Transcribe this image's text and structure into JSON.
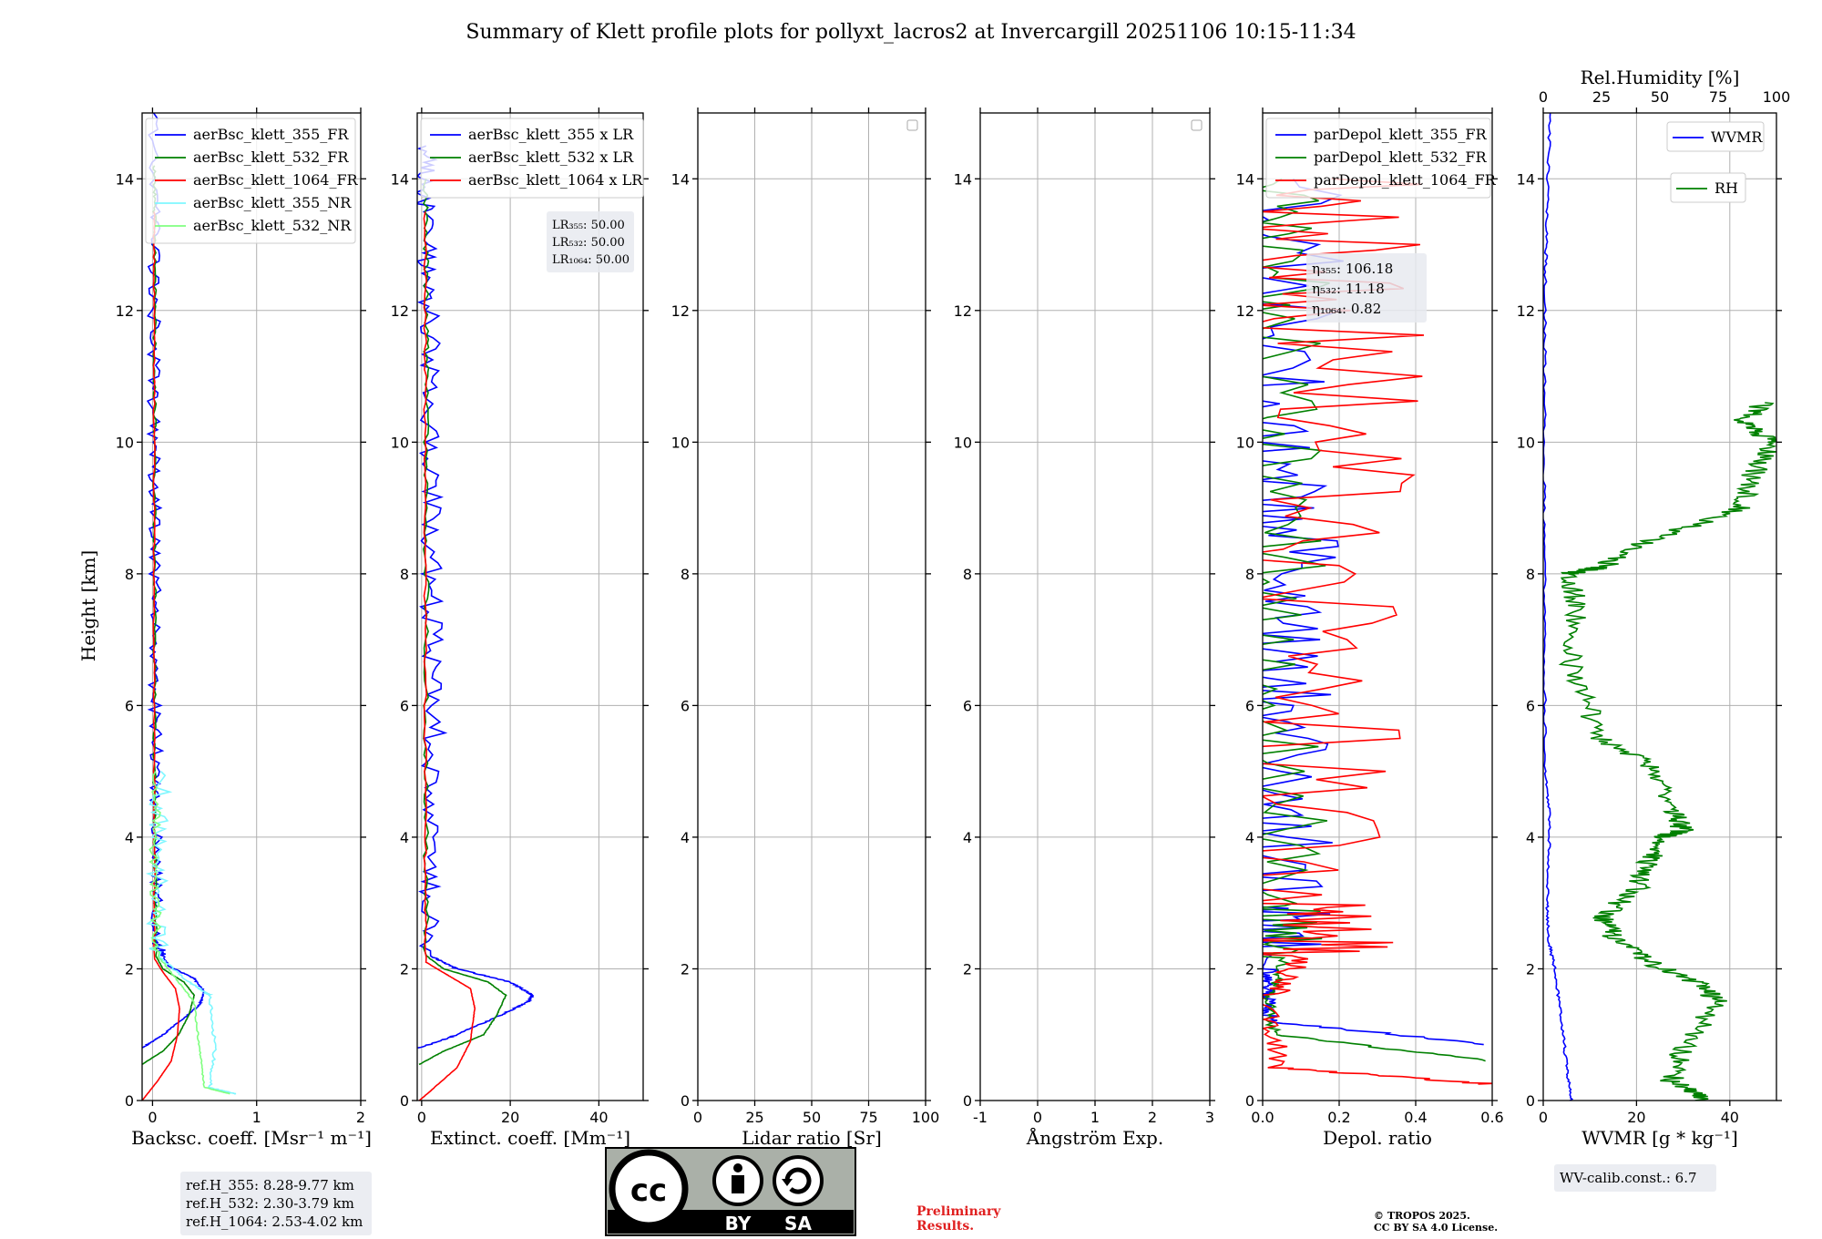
{
  "title": "Summary of Klett profile plots for pollyxt_lacros2 at Invercargill 20251106 10:15-11:34",
  "ylabel": "Height [km]",
  "colors": {
    "b355": "#0000ff",
    "g532": "#008000",
    "r1064": "#ff0000",
    "cyan": "#7ff7ff",
    "lime": "#80ff80",
    "grid": "#b0b0b0"
  },
  "chart_data": [
    {
      "type": "line",
      "id": "bsc",
      "xlabel": "Backsc. coeff. [Msr⁻¹ m⁻¹]",
      "xlim": [
        -0.1,
        2
      ],
      "ylim": [
        0,
        15
      ],
      "xticks": [
        0,
        1,
        2
      ],
      "yticks": [
        0,
        2,
        4,
        6,
        8,
        10,
        12,
        14
      ],
      "legend": [
        "aerBsc_klett_355_FR",
        "aerBsc_klett_532_FR",
        "aerBsc_klett_1064_FR",
        "aerBsc_klett_355_NR",
        "aerBsc_klett_532_NR"
      ],
      "series": [
        {
          "name": "aerBsc_klett_355_FR",
          "color": "#0000ff",
          "noise": 0.06,
          "x": [
            -0.1,
            0.1,
            0.3,
            0.45,
            0.5,
            0.4,
            0.15,
            0.05,
            0.03,
            0.04,
            0.02,
            0.03,
            0.02,
            0.01,
            0.02,
            0.01
          ],
          "y": [
            0.8,
            1.0,
            1.25,
            1.45,
            1.65,
            1.85,
            2.05,
            2.4,
            3.5,
            5.0,
            6.5,
            8.0,
            9.5,
            11.0,
            13.0,
            15.0
          ]
        },
        {
          "name": "aerBsc_klett_532_FR",
          "color": "#008000",
          "noise": 0.015,
          "x": [
            -0.1,
            0.1,
            0.25,
            0.35,
            0.4,
            0.3,
            0.1,
            0.03,
            0.02,
            0.02,
            0.02,
            0.02,
            0.02,
            0.02,
            0.02
          ],
          "y": [
            0.55,
            0.75,
            1.0,
            1.3,
            1.6,
            1.8,
            2.0,
            2.2,
            4.0,
            6.0,
            8.0,
            10.0,
            12.0,
            13.5,
            14.2
          ]
        },
        {
          "name": "aerBsc_klett_1064_FR",
          "color": "#ff0000",
          "noise": 0.008,
          "x": [
            -0.1,
            0.05,
            0.18,
            0.24,
            0.26,
            0.22,
            0.1,
            0.02,
            0.015,
            0.015,
            0.015,
            0.015,
            0.015
          ],
          "y": [
            0.0,
            0.3,
            0.6,
            1.0,
            1.4,
            1.7,
            1.95,
            2.15,
            4.0,
            7.0,
            10.0,
            12.0,
            13.5
          ]
        },
        {
          "name": "aerBsc_klett_355_NR",
          "color": "#7ff7ff",
          "noise": 0.1,
          "x": [
            0.8,
            0.55,
            0.6,
            0.55,
            0.35,
            0.05,
            0.05,
            0.08
          ],
          "y": [
            0.1,
            0.2,
            0.8,
            1.6,
            1.8,
            2.2,
            3.5,
            5.0
          ]
        },
        {
          "name": "aerBsc_klett_532_NR",
          "color": "#80ff80",
          "noise": 0.05,
          "x": [
            0.75,
            0.5,
            0.45,
            0.4,
            0.25,
            0.05,
            0.02,
            0.03
          ],
          "y": [
            0.1,
            0.2,
            0.8,
            1.5,
            1.8,
            2.2,
            3.5,
            5.0
          ]
        }
      ],
      "info_box": [
        "ref.H_355: 8.28-9.77 km",
        "ref.H_532: 2.30-3.79 km",
        "ref.H_1064: 2.53-4.02 km"
      ]
    },
    {
      "type": "line",
      "id": "ext",
      "xlabel": "Extinct. coeff. [Mm⁻¹]",
      "xlim": [
        -1,
        50
      ],
      "ylim": [
        0,
        15
      ],
      "xticks": [
        0,
        20,
        40
      ],
      "yticks": [
        0,
        2,
        4,
        6,
        8,
        10,
        12,
        14
      ],
      "legend": [
        "aerBsc_klett_355 x LR",
        "aerBsc_klett_532 x LR",
        "aerBsc_klett_1064 x LR"
      ],
      "series": [
        {
          "name": "aerBsc_klett_355 x LR",
          "color": "#0000ff",
          "noise": 2.5,
          "x": [
            -0.5,
            8,
            18,
            24,
            25,
            20,
            8,
            2,
            2,
            3,
            2,
            2,
            2,
            1,
            1
          ],
          "y": [
            0.8,
            1.0,
            1.3,
            1.5,
            1.6,
            1.8,
            2.0,
            2.2,
            4.0,
            6.0,
            8.0,
            10.0,
            12.0,
            13.5,
            14.5
          ]
        },
        {
          "name": "aerBsc_klett_532 x LR",
          "color": "#008000",
          "noise": 0.6,
          "x": [
            -0.5,
            5,
            14,
            17,
            19,
            15,
            5,
            1,
            1,
            1,
            1,
            1,
            1
          ],
          "y": [
            0.55,
            0.75,
            1.0,
            1.3,
            1.6,
            1.8,
            2.0,
            2.2,
            5.0,
            8.0,
            11.0,
            12.5,
            14.0
          ]
        },
        {
          "name": "aerBsc_klett_1064 x LR",
          "color": "#ff0000",
          "noise": 0.3,
          "x": [
            -0.5,
            8,
            11,
            12,
            11,
            6,
            1,
            0.8,
            0.8,
            0.8,
            0.8
          ],
          "y": [
            0.0,
            0.5,
            0.9,
            1.4,
            1.7,
            1.9,
            2.1,
            4.0,
            8.0,
            11.0,
            13.5
          ]
        }
      ],
      "info_box": [
        "LR₃₅₅: 50.00",
        "LR₅₃₂: 50.00",
        "LR₁₀₆₄: 50.00"
      ]
    },
    {
      "type": "line",
      "id": "lr",
      "xlabel": "Lidar ratio [Sr]",
      "xlim": [
        0,
        100
      ],
      "ylim": [
        0,
        15
      ],
      "xticks": [
        0,
        25,
        50,
        75,
        100
      ],
      "yticks": [
        0,
        2,
        4,
        6,
        8,
        10,
        12,
        14
      ],
      "series": []
    },
    {
      "type": "line",
      "id": "ang",
      "xlabel": "Ångström Exp.",
      "xlim": [
        -1,
        3
      ],
      "ylim": [
        0,
        15
      ],
      "xticks": [
        -1,
        0,
        1,
        2,
        3
      ],
      "yticks": [
        0,
        2,
        4,
        6,
        8,
        10,
        12,
        14
      ],
      "series": []
    },
    {
      "type": "line",
      "id": "depol",
      "xlabel": "Depol. ratio",
      "xlim": [
        0,
        0.6
      ],
      "ylim": [
        0,
        15
      ],
      "xticks": [
        0.0,
        0.2,
        0.4,
        0.6
      ],
      "yticks": [
        0,
        2,
        4,
        6,
        8,
        10,
        12,
        14
      ],
      "legend": [
        "parDepol_klett_355_FR",
        "parDepol_klett_532_FR",
        "parDepol_klett_1064_FR"
      ],
      "series": [
        {
          "name": "parDepol_klett_355_FR",
          "color": "#0000ff",
          "noise": 0.15,
          "x": [
            0.6,
            0.02,
            0.01,
            0.02,
            0.04,
            0.06,
            0.05,
            0.07,
            0.06,
            0.08
          ],
          "y": [
            0.85,
            1.2,
            1.6,
            2.0,
            3.0,
            5.0,
            7.0,
            9.0,
            11.0,
            14.0
          ]
        },
        {
          "name": "parDepol_klett_532_FR",
          "color": "#008000",
          "noise": 0.12,
          "x": [
            0.6,
            0.03,
            0.02,
            0.05,
            0.06,
            0.04,
            0.05,
            0.06,
            0.05
          ],
          "y": [
            0.6,
            1.0,
            1.6,
            2.0,
            3.0,
            6.0,
            9.0,
            12.0,
            14.0
          ]
        },
        {
          "name": "parDepol_klett_1064_FR",
          "color": "#ff0000",
          "noise": 0.25,
          "x": [
            0.6,
            0.05,
            0.03,
            0.1,
            0.12,
            0.15,
            0.14,
            0.2,
            0.18
          ],
          "y": [
            0.25,
            0.5,
            1.6,
            2.2,
            3.0,
            6.0,
            9.0,
            12.0,
            14.0
          ]
        }
      ],
      "info_box": [
        "η₃₅₅: 106.18",
        "η₅₃₂: 11.18",
        "η₁₀₆₄: 0.82"
      ]
    },
    {
      "type": "line",
      "id": "wv",
      "xlabel": "WVMR [g * kg⁻¹]",
      "x2label": "Rel.Humidity [%]",
      "xlim": [
        0,
        50
      ],
      "x2lim": [
        0,
        100
      ],
      "ylim": [
        0,
        15
      ],
      "xticks": [
        0,
        20,
        40
      ],
      "x2ticks": [
        0,
        25,
        50,
        75,
        100
      ],
      "yticks": [
        0,
        2,
        4,
        6,
        8,
        10,
        12,
        14
      ],
      "legend": [
        "WVMR",
        "RH"
      ],
      "series": [
        {
          "name": "WVMR",
          "color": "#0000ff",
          "noise": 0.3,
          "x": [
            6,
            5,
            4,
            2.5,
            1.2,
            0.8,
            1.5,
            0.4,
            0.3,
            0.2,
            0.3,
            0.5,
            0.8,
            1.5
          ],
          "y": [
            0.0,
            0.5,
            1.2,
            2.0,
            2.4,
            3.0,
            4.2,
            5.0,
            7.0,
            9.0,
            11.0,
            12.5,
            13.5,
            15.0
          ]
        },
        {
          "name": "RH",
          "color": "#008000",
          "axis": "x2",
          "noise": 5,
          "x": [
            70,
            55,
            60,
            75,
            65,
            45,
            30,
            25,
            40,
            45,
            50,
            60,
            55,
            50,
            25,
            12,
            15,
            10,
            25,
            45,
            85,
            90,
            98,
            85,
            95
          ],
          "y": [
            0.0,
            0.3,
            0.8,
            1.5,
            1.8,
            2.1,
            2.5,
            2.8,
            3.2,
            3.6,
            4.0,
            4.1,
            4.4,
            5.0,
            5.5,
            6.5,
            7.5,
            8.0,
            8.1,
            8.5,
            9.0,
            9.5,
            10.0,
            10.3,
            10.6
          ]
        }
      ],
      "info_box": [
        "WV-calib.const.: 6.7"
      ]
    }
  ],
  "footer": {
    "cc_main": "cc",
    "cc_by": "BY",
    "cc_sa": "SA",
    "preliminary_line1": "Preliminary",
    "preliminary_line2": "Results.",
    "copyright_line1": "© TROPOS 2025.",
    "copyright_line2": "CC BY SA 4.0 License."
  }
}
